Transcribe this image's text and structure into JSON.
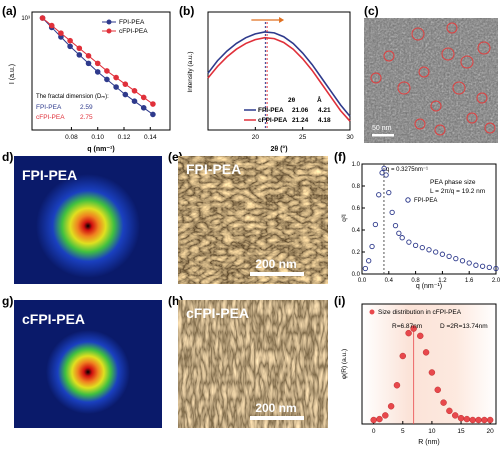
{
  "panel_labels": {
    "a": "(a)",
    "b": "(b)",
    "c": "(c)",
    "d": "d)",
    "e": "(e)",
    "f": "(f)",
    "g": "g)",
    "h": "(h)",
    "i": "(i)"
  },
  "colors": {
    "fpi_pea": "#2e3a8c",
    "cfpi_pea": "#e0303a",
    "size_dist": "#e8484c",
    "saxs_bg": "#0a1a6a"
  },
  "panel_a": {
    "ylabel": "I (a.u.)",
    "xlabel": "q (nm⁻¹)",
    "y_top_tick": "10³",
    "fractal_title": "The fractal dimension (Dₘ):",
    "rows": [
      {
        "name": "FPI-PEA",
        "value": "2.59"
      },
      {
        "name": "cFPI-PEA",
        "value": "2.75"
      }
    ]
  },
  "panel_b": {
    "ylabel": "Intensity (a.u.)",
    "xlabel": "2θ (°)",
    "legend_head_2theta": "2θ",
    "legend_head_d": "Å",
    "rows": [
      {
        "name": "FPI-PEA",
        "two_theta": "21.06",
        "d": "4.21"
      },
      {
        "name": "cFPI-PEA",
        "two_theta": "21.24",
        "d": "4.18"
      }
    ]
  },
  "panel_c": {
    "scalebar": "50 nm"
  },
  "panel_d": {
    "title": "FPI-PEA"
  },
  "panel_e": {
    "title": "FPI-PEA",
    "scalebar": "200 nm"
  },
  "panel_f": {
    "ylabel": "q²I",
    "xlabel": "q (nm⁻¹)",
    "peak_label": "q = 0.3275nm⁻¹",
    "phase_title": "PEA phase size",
    "phase_formula": "L = 2π/q = 19.2 nm",
    "legend": "FPI-PEA"
  },
  "panel_g": {
    "title": "cFPI-PEA"
  },
  "panel_h": {
    "title": "cFPI-PEA",
    "scalebar": "200 nm"
  },
  "panel_i": {
    "ylabel": "φ(R) (a.u.)",
    "xlabel": "R (nm)",
    "legend": "Size distribution in cFPI-PEA",
    "r_label": "R=6.87nm",
    "d_label": "D =2R=13.74nm"
  },
  "chart_data": [
    {
      "type": "scatter",
      "id": "a",
      "xlabel": "q (nm⁻¹)",
      "ylabel": "I (a.u.)",
      "xlim": [
        0.05,
        0.155
      ],
      "xticks": [
        "0.08",
        "0.10",
        "0.12",
        "0.14"
      ],
      "log_y": true,
      "series": [
        {
          "name": "FPI-PEA",
          "x": [
            0.058,
            0.065,
            0.072,
            0.079,
            0.086,
            0.093,
            0.1,
            0.107,
            0.114,
            0.121,
            0.128,
            0.135,
            0.142
          ],
          "y": [
            1.0,
            0.9,
            0.8,
            0.7,
            0.61,
            0.52,
            0.43,
            0.35,
            0.27,
            0.19,
            0.12,
            0.05,
            -0.02
          ]
        },
        {
          "name": "cFPI-PEA",
          "x": [
            0.058,
            0.065,
            0.072,
            0.079,
            0.086,
            0.093,
            0.1,
            0.107,
            0.114,
            0.121,
            0.128,
            0.135,
            0.142
          ],
          "y": [
            1.0,
            0.92,
            0.84,
            0.76,
            0.68,
            0.6,
            0.52,
            0.44,
            0.37,
            0.3,
            0.23,
            0.16,
            0.09
          ]
        }
      ]
    },
    {
      "type": "line",
      "id": "b",
      "xlabel": "2θ (°)",
      "ylabel": "Intensity (a.u.)",
      "xlim": [
        15,
        30
      ],
      "xticks": [
        "20",
        "25",
        "30"
      ],
      "series": [
        {
          "name": "FPI-PEA",
          "x": [
            15,
            16,
            17,
            18,
            19,
            20,
            21,
            22,
            23,
            24,
            25,
            26,
            27,
            28,
            29,
            30
          ],
          "y": [
            0.55,
            0.68,
            0.78,
            0.86,
            0.92,
            0.96,
            0.98,
            0.97,
            0.93,
            0.86,
            0.76,
            0.64,
            0.5,
            0.36,
            0.22,
            0.1
          ]
        },
        {
          "name": "cFPI-PEA",
          "x": [
            15,
            16,
            17,
            18,
            19,
            20,
            21,
            22,
            23,
            24,
            25,
            26,
            27,
            28,
            29,
            30
          ],
          "y": [
            0.5,
            0.62,
            0.72,
            0.8,
            0.86,
            0.9,
            0.92,
            0.91,
            0.87,
            0.8,
            0.7,
            0.58,
            0.44,
            0.3,
            0.16,
            0.05
          ]
        }
      ]
    },
    {
      "type": "scatter",
      "id": "f",
      "xlabel": "q (nm⁻¹)",
      "ylabel": "q²I",
      "xlim": [
        0,
        2.0
      ],
      "ylim": [
        0,
        1.0
      ],
      "xticks": [
        "0.0",
        "0.4",
        "0.8",
        "1.2",
        "1.6",
        "2.0"
      ],
      "yticks": [
        "0.0",
        "0.2",
        "0.4",
        "0.6",
        "0.8",
        "1.0"
      ],
      "series": [
        {
          "name": "FPI-PEA",
          "x": [
            0.05,
            0.1,
            0.15,
            0.2,
            0.25,
            0.3,
            0.33,
            0.36,
            0.4,
            0.45,
            0.5,
            0.55,
            0.6,
            0.7,
            0.8,
            0.9,
            1.0,
            1.1,
            1.2,
            1.3,
            1.4,
            1.5,
            1.6,
            1.7,
            1.8,
            1.9,
            2.0
          ],
          "y": [
            0.05,
            0.12,
            0.25,
            0.45,
            0.72,
            0.92,
            0.96,
            0.9,
            0.74,
            0.56,
            0.44,
            0.37,
            0.33,
            0.29,
            0.26,
            0.24,
            0.22,
            0.2,
            0.18,
            0.16,
            0.14,
            0.12,
            0.1,
            0.08,
            0.07,
            0.06,
            0.05
          ]
        }
      ]
    },
    {
      "type": "scatter",
      "id": "i",
      "xlabel": "R (nm)",
      "ylabel": "φ(R) (a.u.)",
      "xlim": [
        -2,
        21
      ],
      "ylim": [
        0,
        1.05
      ],
      "xticks": [
        "0",
        "5",
        "10",
        "15",
        "20"
      ],
      "series": [
        {
          "name": "Size distribution in cFPI-PEA",
          "x": [
            0,
            1,
            2,
            3,
            4,
            5,
            6,
            6.87,
            8,
            9,
            10,
            11,
            12,
            13,
            14,
            15,
            16,
            17,
            18,
            19,
            20
          ],
          "y": [
            0.0,
            0.01,
            0.05,
            0.15,
            0.38,
            0.7,
            0.95,
            1.0,
            0.92,
            0.74,
            0.52,
            0.33,
            0.19,
            0.1,
            0.05,
            0.02,
            0.01,
            0.0,
            0.0,
            0.0,
            0.0
          ]
        }
      ]
    }
  ]
}
